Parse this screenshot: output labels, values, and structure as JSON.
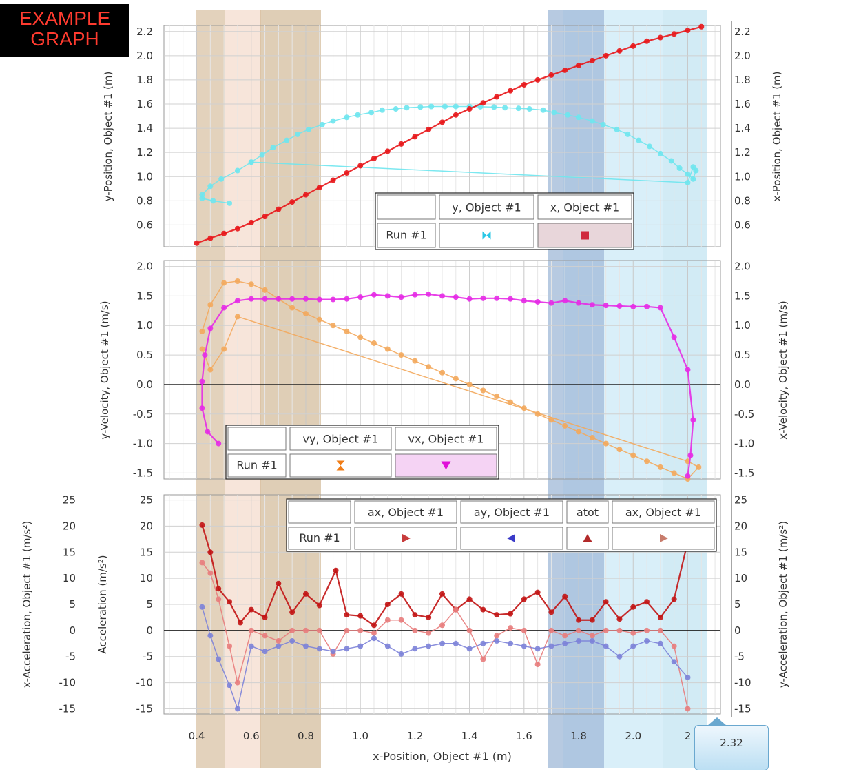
{
  "badge": {
    "line1": "EXAMPLE",
    "line2": "GRAPH"
  },
  "cursor_readout": "2.32",
  "colors": {
    "cyan": "#6ee6ee",
    "red": "#e8161a",
    "magenta": "#e62be6",
    "orange": "#f3a85c",
    "darkred": "#c21414",
    "blue": "#7c82d8",
    "pink": "#e87c7c"
  },
  "icons": [
    "bowtie-cyan-icon",
    "square-red-icon",
    "hourglass-orange-icon",
    "triangle-down-magenta-icon",
    "triangle-right-red-icon",
    "triangle-left-blue-icon",
    "triangle-up-red-icon"
  ],
  "legends": [
    {
      "run": "Run #1",
      "headers": [
        "y, Object #1",
        "x, Object #1"
      ]
    },
    {
      "run": "Run #1",
      "headers": [
        "vy, Object #1",
        "vx, Object #1"
      ]
    },
    {
      "run": "Run #1",
      "headers": [
        "ax, Object #1",
        "ay, Object #1",
        "atot",
        "ax, Object #1"
      ]
    }
  ],
  "chart_data": [
    {
      "type": "line",
      "xlabel": "x-Position, Object #1 (m)",
      "ylabel_left": "y-Position, Object #1 (m)",
      "ylabel_right": "x-Position, Object #1 (m)",
      "xlim": [
        0.28,
        2.32
      ],
      "ylim": [
        0.42,
        2.25
      ],
      "yticks": [
        "0.6",
        "0.8",
        "1.0",
        "1.2",
        "1.4",
        "1.6",
        "1.8",
        "2.0",
        "2.2"
      ],
      "xticks": [
        "0.4",
        "0.6",
        "0.8",
        "1.0",
        "1.2",
        "1.4",
        "1.6",
        "1.8",
        "2.0",
        "2"
      ],
      "grid": true,
      "series": [
        {
          "name": "y, Object #1",
          "color": "#6ee6ee",
          "x": [
            0.52,
            0.46,
            0.42,
            0.42,
            0.45,
            0.49,
            0.55,
            0.6,
            0.64,
            0.68,
            0.73,
            0.77,
            0.81,
            0.86,
            0.9,
            0.95,
            0.99,
            1.04,
            1.08,
            1.13,
            1.17,
            1.22,
            1.26,
            1.31,
            1.35,
            1.4,
            1.44,
            1.49,
            1.53,
            1.58,
            1.62,
            1.67,
            1.71,
            1.76,
            1.8,
            1.85,
            1.89,
            1.94,
            1.98,
            2.02,
            2.06,
            2.1,
            2.14,
            2.17,
            2.2,
            2.22,
            2.23,
            2.22,
            2.2,
            0.6
          ],
          "y": [
            0.78,
            0.8,
            0.82,
            0.85,
            0.92,
            0.98,
            1.05,
            1.12,
            1.18,
            1.24,
            1.3,
            1.35,
            1.39,
            1.43,
            1.46,
            1.49,
            1.51,
            1.53,
            1.55,
            1.56,
            1.57,
            1.575,
            1.58,
            1.58,
            1.58,
            1.58,
            1.578,
            1.575,
            1.57,
            1.565,
            1.56,
            1.55,
            1.53,
            1.51,
            1.49,
            1.46,
            1.43,
            1.39,
            1.35,
            1.3,
            1.25,
            1.19,
            1.13,
            1.07,
            1.02,
            0.98,
            1.05,
            1.08,
            0.95,
            1.12
          ]
        },
        {
          "name": "x, Object #1",
          "color": "#e8161a",
          "x": [
            0.4,
            0.45,
            0.5,
            0.55,
            0.6,
            0.65,
            0.7,
            0.75,
            0.8,
            0.85,
            0.9,
            0.95,
            1.0,
            1.05,
            1.1,
            1.15,
            1.2,
            1.25,
            1.3,
            1.35,
            1.4,
            1.45,
            1.5,
            1.55,
            1.6,
            1.65,
            1.7,
            1.75,
            1.8,
            1.85,
            1.9,
            1.95,
            2.0,
            2.05,
            2.1,
            2.15,
            2.2,
            2.25
          ],
          "y": [
            0.45,
            0.49,
            0.53,
            0.57,
            0.62,
            0.67,
            0.73,
            0.79,
            0.85,
            0.91,
            0.97,
            1.03,
            1.09,
            1.15,
            1.21,
            1.27,
            1.33,
            1.39,
            1.45,
            1.51,
            1.56,
            1.61,
            1.66,
            1.71,
            1.76,
            1.8,
            1.84,
            1.88,
            1.92,
            1.96,
            2.0,
            2.04,
            2.08,
            2.12,
            2.15,
            2.18,
            2.21,
            2.24
          ]
        }
      ]
    },
    {
      "type": "line",
      "ylabel_left": "y-Velocity, Object #1 (m/s)",
      "ylabel_right": "x-Velocity, Object #1 (m/s)",
      "ylim": [
        -1.6,
        2.1
      ],
      "yticks": [
        "-1.5",
        "-1.0",
        "-0.5",
        "0.0",
        "0.5",
        "1.0",
        "1.5",
        "2.0"
      ],
      "grid": true,
      "series": [
        {
          "name": "vy, Object #1",
          "color": "#f3a85c",
          "x": [
            0.42,
            0.45,
            0.5,
            0.55,
            0.6,
            0.65,
            0.7,
            0.75,
            0.8,
            0.85,
            0.9,
            0.95,
            1.0,
            1.05,
            1.1,
            1.15,
            1.2,
            1.25,
            1.3,
            1.35,
            1.4,
            1.45,
            1.5,
            1.55,
            1.6,
            1.65,
            1.7,
            1.75,
            1.8,
            1.85,
            1.9,
            1.95,
            2.0,
            2.05,
            2.1,
            2.15,
            2.2,
            2.24,
            2.2,
            0.55,
            0.5,
            0.45,
            0.42
          ],
          "y": [
            0.9,
            1.35,
            1.72,
            1.75,
            1.7,
            1.6,
            1.45,
            1.3,
            1.2,
            1.1,
            1.0,
            0.9,
            0.8,
            0.7,
            0.6,
            0.5,
            0.4,
            0.3,
            0.2,
            0.1,
            0.0,
            -0.1,
            -0.2,
            -0.3,
            -0.4,
            -0.5,
            -0.6,
            -0.7,
            -0.8,
            -0.9,
            -1.0,
            -1.1,
            -1.2,
            -1.3,
            -1.4,
            -1.5,
            -1.6,
            -1.4,
            -1.3,
            1.15,
            0.6,
            0.25,
            0.6
          ]
        },
        {
          "name": "vx, Object #1",
          "color": "#e62be6",
          "x": [
            0.48,
            0.44,
            0.42,
            0.42,
            0.43,
            0.45,
            0.5,
            0.55,
            0.6,
            0.65,
            0.7,
            0.75,
            0.8,
            0.85,
            0.9,
            0.95,
            1.0,
            1.05,
            1.1,
            1.15,
            1.2,
            1.25,
            1.3,
            1.35,
            1.4,
            1.45,
            1.5,
            1.55,
            1.6,
            1.65,
            1.7,
            1.75,
            1.8,
            1.85,
            1.9,
            1.95,
            2.0,
            2.05,
            2.1,
            2.15,
            2.2,
            2.22,
            2.21,
            2.2
          ],
          "y": [
            -1.0,
            -0.8,
            -0.4,
            0.05,
            0.5,
            0.95,
            1.3,
            1.42,
            1.45,
            1.45,
            1.45,
            1.45,
            1.45,
            1.44,
            1.44,
            1.45,
            1.48,
            1.52,
            1.5,
            1.48,
            1.52,
            1.53,
            1.5,
            1.48,
            1.45,
            1.46,
            1.46,
            1.45,
            1.42,
            1.4,
            1.38,
            1.42,
            1.38,
            1.35,
            1.34,
            1.33,
            1.32,
            1.32,
            1.3,
            0.8,
            0.25,
            -0.6,
            -1.2,
            -1.55
          ]
        }
      ]
    },
    {
      "type": "line",
      "ylabel_left": "x-Acceleration, Object #1 (m/s²)",
      "ylabel_left2": "Acceleration (m/s²)",
      "ylabel_right": "y-Acceleration, Object #1 (m/s²)",
      "ylim": [
        -16,
        26
      ],
      "yticks": [
        "-15",
        "-10",
        "-5",
        "0",
        "5",
        "10",
        "15",
        "20",
        "25"
      ],
      "grid": true,
      "series": [
        {
          "name": "atot",
          "color": "#c21414",
          "x": [
            0.42,
            0.45,
            0.48,
            0.52,
            0.56,
            0.6,
            0.65,
            0.7,
            0.75,
            0.8,
            0.85,
            0.91,
            0.95,
            1.0,
            1.05,
            1.1,
            1.15,
            1.2,
            1.25,
            1.3,
            1.35,
            1.4,
            1.45,
            1.5,
            1.55,
            1.6,
            1.65,
            1.7,
            1.75,
            1.8,
            1.85,
            1.9,
            1.95,
            2.0,
            2.05,
            2.1,
            2.15,
            2.2
          ],
          "y": [
            20.2,
            15,
            8,
            5.5,
            1.5,
            4,
            2.5,
            9,
            3.5,
            7,
            4.8,
            11.5,
            3,
            2.8,
            1,
            5,
            7,
            3,
            2.5,
            7,
            4,
            6,
            4,
            3,
            3.2,
            6,
            7.3,
            3.5,
            6.5,
            2,
            2,
            5.5,
            2.2,
            4.5,
            5.5,
            2.5,
            6,
            17
          ]
        },
        {
          "name": "ax, Object #1",
          "color": "#e87c7c",
          "x": [
            0.42,
            0.45,
            0.48,
            0.52,
            0.55,
            0.6,
            0.65,
            0.7,
            0.75,
            0.8,
            0.85,
            0.9,
            0.95,
            1.0,
            1.05,
            1.1,
            1.15,
            1.2,
            1.25,
            1.3,
            1.35,
            1.4,
            1.45,
            1.5,
            1.55,
            1.6,
            1.65,
            1.7,
            1.75,
            1.8,
            1.85,
            1.9,
            1.95,
            2.0,
            2.05,
            2.1,
            2.15,
            2.2
          ],
          "y": [
            13,
            11,
            6,
            -3,
            -10,
            0,
            -1,
            -2,
            0,
            0,
            0,
            -4.5,
            0,
            0,
            -0.5,
            2,
            2,
            0,
            -0.5,
            1,
            4,
            0,
            -5.5,
            -1,
            0.5,
            0,
            -6.5,
            0,
            -1,
            0,
            -1,
            0,
            0,
            -0.5,
            0,
            0,
            -3,
            -15
          ]
        },
        {
          "name": "ay, Object #1",
          "color": "#7c82d8",
          "x": [
            0.42,
            0.45,
            0.48,
            0.52,
            0.55,
            0.6,
            0.65,
            0.7,
            0.75,
            0.8,
            0.85,
            0.9,
            0.95,
            1.0,
            1.05,
            1.1,
            1.15,
            1.2,
            1.25,
            1.3,
            1.35,
            1.4,
            1.45,
            1.5,
            1.55,
            1.6,
            1.65,
            1.7,
            1.75,
            1.8,
            1.85,
            1.9,
            1.95,
            2.0,
            2.05,
            2.1,
            2.15,
            2.2
          ],
          "y": [
            4.5,
            -1,
            -5.5,
            -10.5,
            -15,
            -3,
            -4,
            -3,
            -2,
            -3,
            -3.5,
            -4,
            -3.5,
            -3,
            -1.5,
            -3,
            -4.5,
            -3.5,
            -3,
            -2.5,
            -2.5,
            -3.5,
            -2.5,
            -2,
            -2.5,
            -3,
            -3.5,
            -3,
            -2.5,
            -2,
            -2,
            -3,
            -5,
            -3,
            -2,
            -2.5,
            -6,
            -9
          ]
        }
      ]
    }
  ]
}
